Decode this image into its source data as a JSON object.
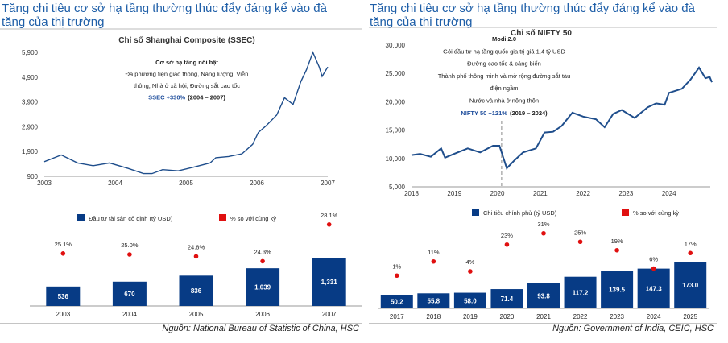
{
  "colors": {
    "title": "#1f5fa8",
    "line": "#1f4e8c",
    "bar": "#073b85",
    "dot": "#e01010",
    "highlight": "#1f4e9c"
  },
  "left": {
    "title_line1": "Tăng chi tiêu cơ sở hạ tầng thường thúc đẩy đáng kể vào đà",
    "title_line2": "tăng của thị trường",
    "source": "Nguồn: National Bureau of Statistic of China, HSC"
  },
  "right": {
    "title_line1": "Tăng chi tiêu cơ sở hạ tầng thường thúc đẩy đáng kể vào đà",
    "title_line2": "tăng của thị trường",
    "source": "Nguồn: Government of India, CEIC, HSC"
  },
  "chart_data": [
    {
      "type": "line",
      "title": "Chỉ số Shanghai Composite (SSEC)",
      "xticks": [
        "2003",
        "2004",
        "2005",
        "2006",
        "2007"
      ],
      "yticks": [
        "900",
        "1,900",
        "2,900",
        "3,900",
        "4,900",
        "5,900"
      ],
      "xlim": [
        2003,
        2007
      ],
      "ylim": [
        900,
        5900
      ],
      "grid": false,
      "annotations": [
        "Cơ sở hạ tầng nổi bật",
        "Đa phương tiện giao thông, Năng lượng, Viễn",
        "thông, Nhà ở xã hội, Đường sắt cao tốc"
      ],
      "highlight": {
        "blue": "SSEC +330%",
        "rest": "(2004 – 2007)"
      },
      "x": [
        2003.0,
        2003.24,
        2003.47,
        2003.69,
        2003.92,
        2004.18,
        2004.4,
        2004.52,
        2004.67,
        2004.89,
        2005.12,
        2005.34,
        2005.42,
        2005.6,
        2005.79,
        2005.94,
        2006.02,
        2006.13,
        2006.28,
        2006.39,
        2006.51,
        2006.62,
        2006.7,
        2006.79,
        2006.88,
        2006.92,
        2007.0
      ],
      "y": [
        1490,
        1760,
        1440,
        1330,
        1440,
        1220,
        1010,
        1010,
        1170,
        1120,
        1280,
        1440,
        1650,
        1700,
        1810,
        2190,
        2670,
        2940,
        3370,
        4070,
        3800,
        4720,
        5200,
        5900,
        5310,
        4930,
        5310
      ]
    },
    {
      "type": "line",
      "title": "Chỉ số NIFTY 50",
      "xticks": [
        "2018",
        "2019",
        "2020",
        "2021",
        "2022",
        "2023",
        "2024"
      ],
      "yticks": [
        "5,000",
        "10,000",
        "15,000",
        "20,000",
        "25,000",
        "30,000"
      ],
      "xlim": [
        2018,
        2025
      ],
      "ylim": [
        5000,
        30000
      ],
      "grid": false,
      "vline_x": 2020.1,
      "annotations": [
        "Modi 2.0",
        "Gói đầu tư hạ tầng quốc gia trị giá 1,4 tỷ USD",
        "Đường cao tốc & cảng biển",
        "Thành phố thông minh và mở rộng đường sắt tàu",
        "điện ngầm",
        "Nước và nhà ở nông thôn"
      ],
      "highlight": {
        "blue": "NIFTY 50 +121%",
        "rest": "(2019 – 2024)"
      },
      "x": [
        2018.0,
        2018.2,
        2018.45,
        2018.69,
        2018.78,
        2019.0,
        2019.31,
        2019.6,
        2019.9,
        2020.05,
        2020.22,
        2020.4,
        2020.6,
        2020.9,
        2021.1,
        2021.3,
        2021.5,
        2021.75,
        2022.0,
        2022.3,
        2022.5,
        2022.7,
        2022.9,
        2023.2,
        2023.5,
        2023.7,
        2023.9,
        2024.0,
        2024.3,
        2024.5,
        2024.7,
        2024.85,
        2024.95,
        2025.0
      ],
      "y": [
        10600,
        10800,
        10300,
        11770,
        10140,
        10840,
        11770,
        11070,
        12240,
        12240,
        8270,
        9670,
        11070,
        11770,
        14570,
        14700,
        15740,
        18080,
        17380,
        16910,
        15510,
        17850,
        18550,
        17140,
        19010,
        19710,
        19480,
        21580,
        22280,
        23910,
        26020,
        24150,
        24380,
        23450
      ]
    },
    {
      "type": "bar",
      "categories": [
        "2003",
        "2004",
        "2005",
        "2006",
        "2007"
      ],
      "series": [
        {
          "name": "Đầu tư tài sản cố định (tỷ USD)",
          "values": [
            536,
            670,
            836,
            1039,
            1331
          ],
          "labels": [
            "536",
            "670",
            "836",
            "1,039",
            "1,331"
          ]
        },
        {
          "name": "% so với cùng kỳ",
          "values": [
            25.1,
            25.0,
            24.8,
            24.3,
            28.1
          ],
          "labels": [
            "25.1%",
            "25.0%",
            "24.8%",
            "24.3%",
            "28.1%"
          ]
        }
      ]
    },
    {
      "type": "bar",
      "categories": [
        "2017",
        "2018",
        "2019",
        "2020",
        "2021",
        "2022",
        "2023",
        "2024",
        "2025"
      ],
      "series": [
        {
          "name": "Chi tiêu chính phủ (tỷ USD)",
          "values": [
            50.2,
            55.8,
            58.0,
            71.4,
            93.8,
            117.2,
            139.5,
            147.3,
            173.0
          ],
          "labels": [
            "50.2",
            "55.8",
            "58.0",
            "71.4",
            "93.8",
            "117.2",
            "139.5",
            "147.3",
            "173.0"
          ]
        },
        {
          "name": "% so với cùng kỳ",
          "values": [
            1,
            11,
            4,
            23,
            31,
            25,
            19,
            6,
            17
          ],
          "labels": [
            "1%",
            "11%",
            "4%",
            "23%",
            "31%",
            "25%",
            "19%",
            "6%",
            "17%"
          ]
        }
      ]
    }
  ]
}
